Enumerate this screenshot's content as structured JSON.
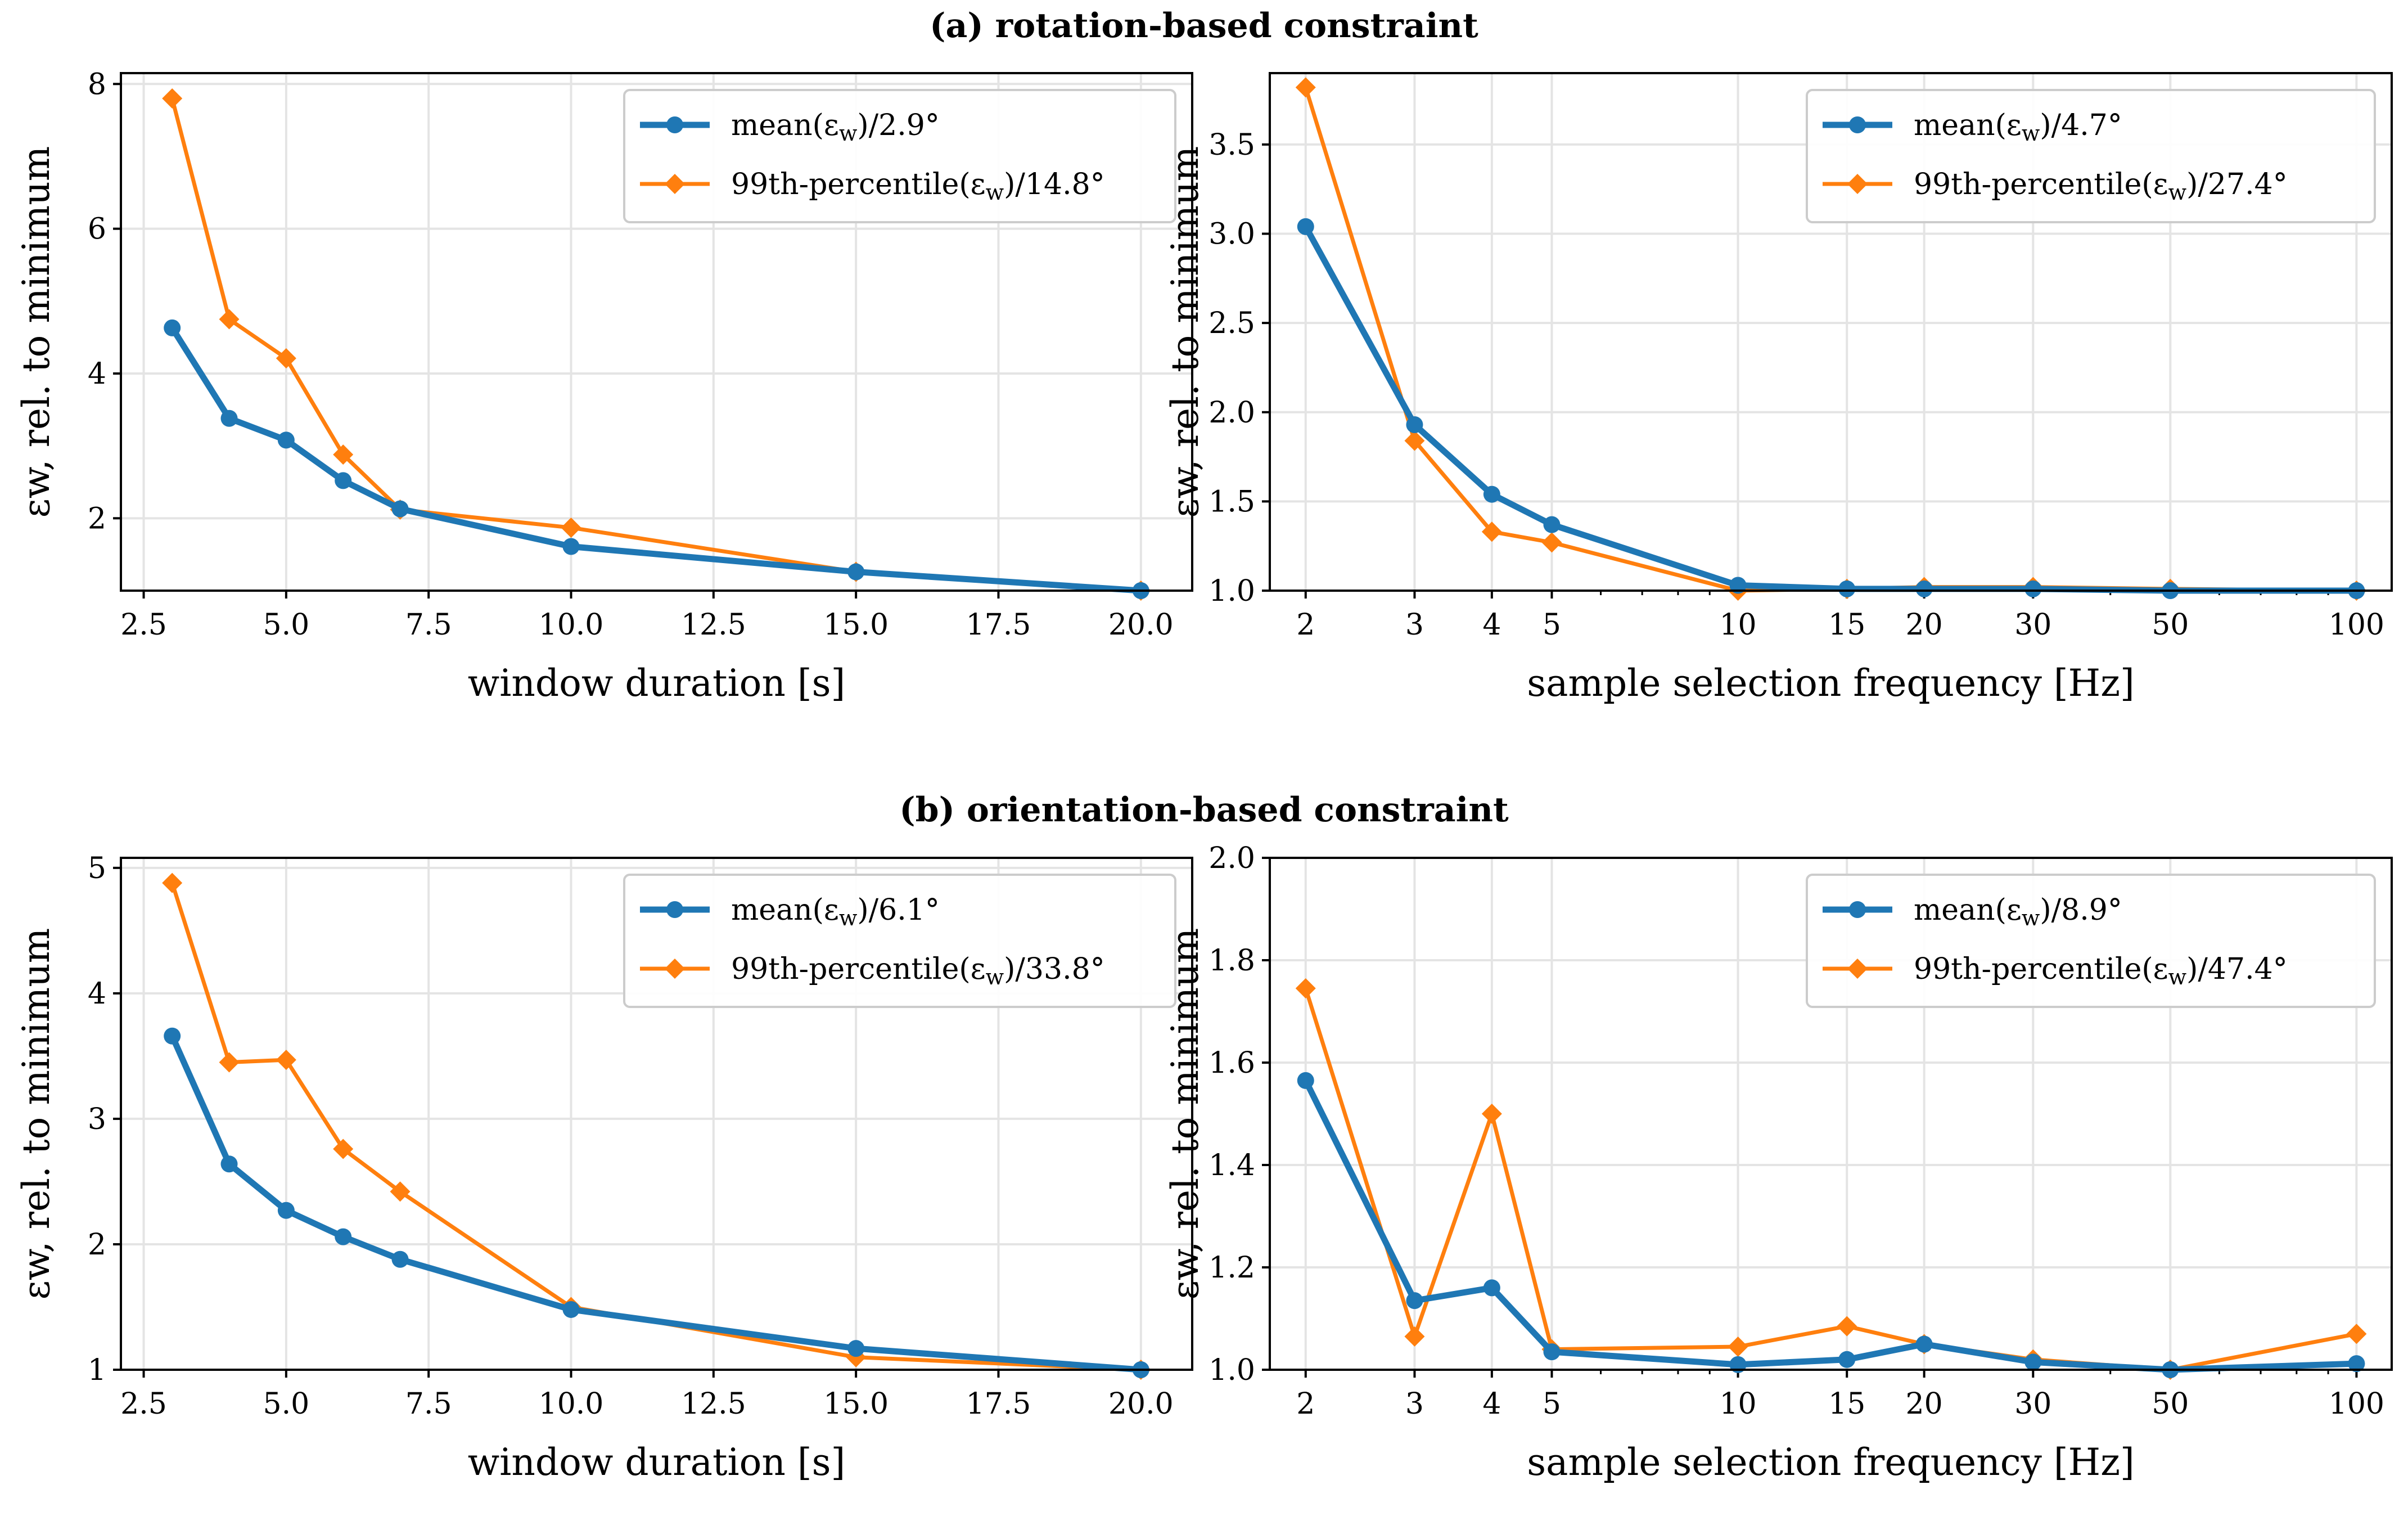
{
  "colors": {
    "mean": "#1f77b4",
    "p99": "#ff7f0e"
  },
  "sections": [
    {
      "title": "(a) rotation-based constraint"
    },
    {
      "title": "(b) orientation-based constraint"
    }
  ],
  "chart_data": [
    {
      "type": "line",
      "section": "(a) rotation-based constraint",
      "xlabel": "window duration [s]",
      "ylabel": "εw, rel. to minimum",
      "xscale": "linear",
      "xlim": [
        2.1,
        20.9
      ],
      "ylim": [
        1.0,
        8.15
      ],
      "xticks": [
        2.5,
        5.0,
        7.5,
        10.0,
        12.5,
        15.0,
        17.5,
        20.0
      ],
      "xtick_labels": [
        "2.5",
        "5.0",
        "7.5",
        "10.0",
        "12.5",
        "15.0",
        "17.5",
        "20.0"
      ],
      "yticks": [
        2,
        4,
        6,
        8
      ],
      "ytick_labels": [
        "2",
        "4",
        "6",
        "8"
      ],
      "grid": true,
      "legend_position": "top-right",
      "x": [
        3,
        4,
        5,
        6,
        7,
        10,
        15,
        20
      ],
      "series": [
        {
          "name": "mean(εw)/2.9°",
          "values": [
            4.63,
            3.38,
            3.08,
            2.52,
            2.13,
            1.61,
            1.26,
            1.0
          ]
        },
        {
          "name": "99th-percentile(εw)/14.8°",
          "values": [
            7.8,
            4.75,
            4.21,
            2.88,
            2.12,
            1.87,
            1.26,
            1.0
          ]
        }
      ]
    },
    {
      "type": "line",
      "section": "(a) rotation-based constraint",
      "xlabel": "sample selection frequency [Hz]",
      "ylabel": "εw, rel. to minimum",
      "xscale": "log",
      "xlim": [
        1.75,
        114
      ],
      "ylim": [
        1.0,
        3.9
      ],
      "xticks": [
        2,
        3,
        4,
        5,
        10,
        15,
        20,
        30,
        50,
        100
      ],
      "xtick_labels": [
        "2",
        "3",
        "4",
        "5",
        "10",
        "15",
        "20",
        "30",
        "50",
        "100"
      ],
      "yticks": [
        1.0,
        1.5,
        2.0,
        2.5,
        3.0,
        3.5
      ],
      "ytick_labels": [
        "1.0",
        "1.5",
        "2.0",
        "2.5",
        "3.0",
        "3.5"
      ],
      "grid": true,
      "legend_position": "top-right",
      "x": [
        2,
        3,
        4,
        5,
        10,
        15,
        20,
        30,
        50,
        100
      ],
      "series": [
        {
          "name": "mean(εw)/4.7°",
          "values": [
            3.04,
            1.93,
            1.54,
            1.37,
            1.03,
            1.01,
            1.01,
            1.01,
            1.0,
            1.0
          ]
        },
        {
          "name": "99th-percentile(εw)/27.4°",
          "values": [
            3.82,
            1.84,
            1.33,
            1.27,
            1.0,
            1.01,
            1.02,
            1.02,
            1.01,
            1.0
          ]
        }
      ]
    },
    {
      "type": "line",
      "section": "(b) orientation-based constraint",
      "xlabel": "window duration [s]",
      "ylabel": "εw, rel. to minimum",
      "xscale": "linear",
      "xlim": [
        2.1,
        20.9
      ],
      "ylim": [
        1.0,
        5.08
      ],
      "xticks": [
        2.5,
        5.0,
        7.5,
        10.0,
        12.5,
        15.0,
        17.5,
        20.0
      ],
      "xtick_labels": [
        "2.5",
        "5.0",
        "7.5",
        "10.0",
        "12.5",
        "15.0",
        "17.5",
        "20.0"
      ],
      "yticks": [
        1,
        2,
        3,
        4,
        5
      ],
      "ytick_labels": [
        "1",
        "2",
        "3",
        "4",
        "5"
      ],
      "grid": true,
      "legend_position": "top-right",
      "x": [
        3,
        4,
        5,
        6,
        7,
        10,
        15,
        20
      ],
      "series": [
        {
          "name": "mean(εw)/6.1°",
          "values": [
            3.66,
            2.64,
            2.27,
            2.06,
            1.88,
            1.48,
            1.17,
            1.0
          ]
        },
        {
          "name": "99th-percentile(εw)/33.8°",
          "values": [
            4.88,
            3.45,
            3.47,
            2.76,
            2.42,
            1.5,
            1.1,
            1.0
          ]
        }
      ]
    },
    {
      "type": "line",
      "section": "(b) orientation-based constraint",
      "xlabel": "sample selection frequency [Hz]",
      "ylabel": "εw, rel. to minimum",
      "xscale": "log",
      "xlim": [
        1.75,
        114
      ],
      "ylim": [
        1.0,
        2.0
      ],
      "xticks": [
        2,
        3,
        4,
        5,
        10,
        15,
        20,
        30,
        50,
        100
      ],
      "xtick_labels": [
        "2",
        "3",
        "4",
        "5",
        "10",
        "15",
        "20",
        "30",
        "50",
        "100"
      ],
      "yticks": [
        1.0,
        1.2,
        1.4,
        1.6,
        1.8,
        2.0
      ],
      "ytick_labels": [
        "1.0",
        "1.2",
        "1.4",
        "1.6",
        "1.8",
        "2.0"
      ],
      "grid": true,
      "legend_position": "top-right",
      "x": [
        2,
        3,
        4,
        5,
        10,
        15,
        20,
        30,
        50,
        100
      ],
      "series": [
        {
          "name": "mean(εw)/8.9°",
          "values": [
            1.565,
            1.135,
            1.16,
            1.035,
            1.01,
            1.02,
            1.05,
            1.015,
            1.0,
            1.012
          ]
        },
        {
          "name": "99th-percentile(εw)/47.4°",
          "values": [
            1.745,
            1.065,
            1.5,
            1.04,
            1.045,
            1.085,
            1.05,
            1.02,
            1.0,
            1.07
          ]
        }
      ]
    }
  ]
}
